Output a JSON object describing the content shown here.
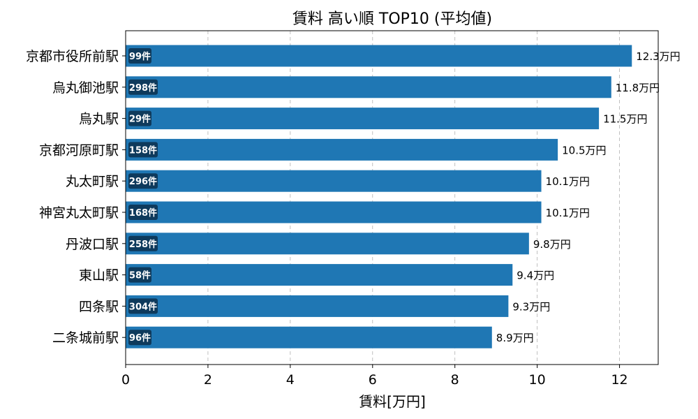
{
  "chart_data": {
    "type": "bar",
    "orientation": "horizontal",
    "title": "賃料 高い順 TOP10 (平均値)",
    "xlabel": "賃料[万円]",
    "ylabel": "",
    "xlim": [
      0,
      12.94
    ],
    "xticks": [
      0,
      2,
      4,
      6,
      8,
      10,
      12
    ],
    "grid": "x-dashed",
    "bar_color": "#1f77b4",
    "badge_color": "#0e3a5c",
    "categories": [
      "京都市役所前駅",
      "烏丸御池駅",
      "烏丸駅",
      "京都河原町駅",
      "丸太町駅",
      "神宮丸太町駅",
      "丹波口駅",
      "東山駅",
      "四条駅",
      "二条城前駅"
    ],
    "values": [
      12.3,
      11.8,
      11.5,
      10.5,
      10.1,
      10.1,
      9.8,
      9.4,
      9.3,
      8.9
    ],
    "value_labels": [
      "12.3万円",
      "11.8万円",
      "11.5万円",
      "10.5万円",
      "10.1万円",
      "10.1万円",
      "9.8万円",
      "9.4万円",
      "9.3万円",
      "8.9万円"
    ],
    "counts": [
      "99件",
      "298件",
      "29件",
      "158件",
      "296件",
      "168件",
      "258件",
      "58件",
      "304件",
      "96件"
    ]
  }
}
